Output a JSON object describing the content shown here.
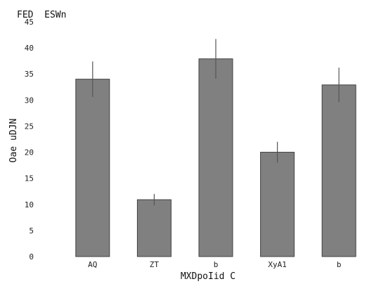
{
  "chart_data": {
    "type": "bar",
    "title": "FED  ESWn",
    "xlabel": "MXDpoIid C",
    "ylabel": "Oae uDJN",
    "categories": [
      "AQ",
      "ZT",
      "b",
      "XyA1",
      "b"
    ],
    "values": [
      34.0,
      10.9,
      37.9,
      20.0,
      32.9
    ],
    "errors": [
      3.4,
      1.1,
      3.8,
      2.0,
      3.3
    ],
    "ylim": [
      0,
      45
    ],
    "yticks": [
      0,
      5,
      10,
      15,
      20,
      25,
      30,
      35,
      40,
      45
    ],
    "grid": false,
    "bar_color": "#808080",
    "bar_edge_color": "#404040",
    "error_color": "#555555"
  }
}
